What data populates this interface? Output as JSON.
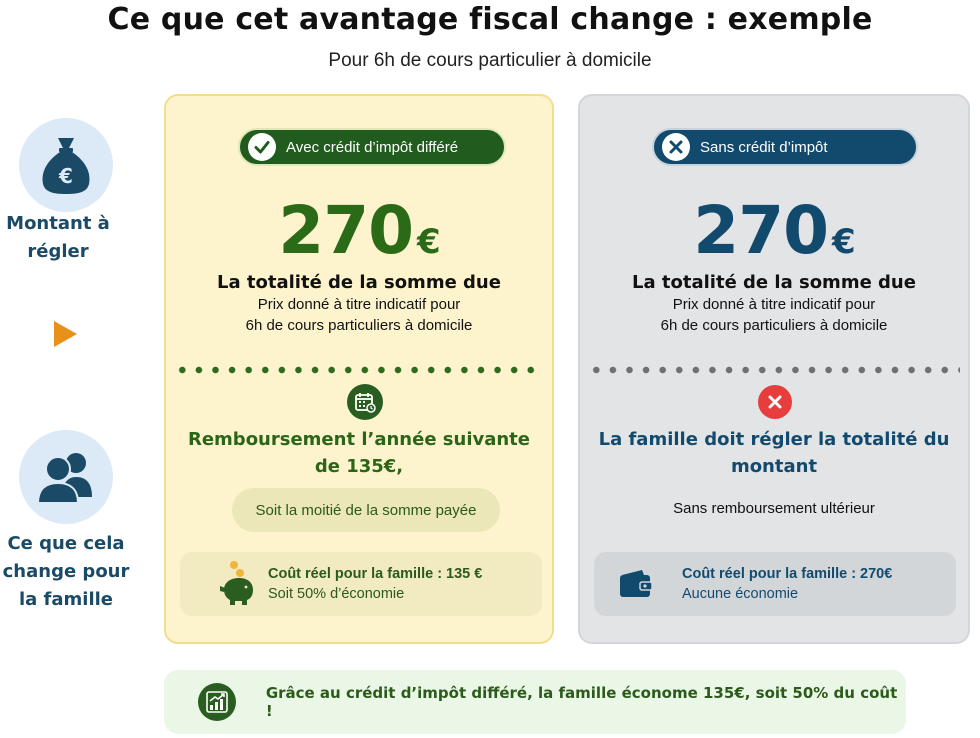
{
  "header": {
    "title": "Ce que cet avantage fiscal change : exemple",
    "subtitle": "Pour 6h de cours particulier à domicile"
  },
  "sidebar": {
    "amount_label": [
      "Montant à",
      "régler"
    ],
    "change_label": [
      "Ce que cela",
      "change pour",
      "la famille"
    ]
  },
  "with_credit": {
    "badge": "Avec crédit d’impôt différé",
    "amount": "270",
    "currency": "€",
    "due_title": "La totalité de la somme due",
    "price_note": [
      "Prix donné à titre indicatif pour",
      "6h de cours particuliers à domicile"
    ],
    "refund_heading": [
      "Remboursement l’année suivante",
      "de 135€,"
    ],
    "half_note": "Soit la moitié de la somme payée",
    "cost_title": "Coût réel pour la famille : 135 €",
    "cost_sub": "Soit 50% d’économie"
  },
  "without_credit": {
    "badge": "Sans crédit d’impôt",
    "amount": "270",
    "currency": "€",
    "due_title": "La totalité de la somme due",
    "price_note": [
      "Prix donné à titre indicatif pour",
      "6h de cours particuliers à domicile"
    ],
    "pay_heading": [
      "La famille doit régler la totalité du",
      "montant"
    ],
    "no_refund": "Sans remboursement ultérieur",
    "cost_title": "Coût réel pour la famille : 270€",
    "cost_sub": "Aucune économie"
  },
  "banner": {
    "text": "Grâce au crédit d’impôt différé, la famille économe 135€, soit 50% du coût !"
  },
  "colors": {
    "green_dark": "#215c1e",
    "blue_dark": "#124a6e",
    "yellow_bg": "#fdf4cd",
    "grey_bg": "#e3e4e6",
    "accent_orange": "#e8901a"
  },
  "icons": {
    "money_bag": "money-bag-icon",
    "family": "people-icon",
    "check": "check-icon",
    "cross": "x-icon",
    "calendar": "calendar-icon",
    "error": "error-circle-icon",
    "piggy": "piggy-bank-icon",
    "wallet": "wallet-icon",
    "growth": "growth-chart-icon"
  }
}
